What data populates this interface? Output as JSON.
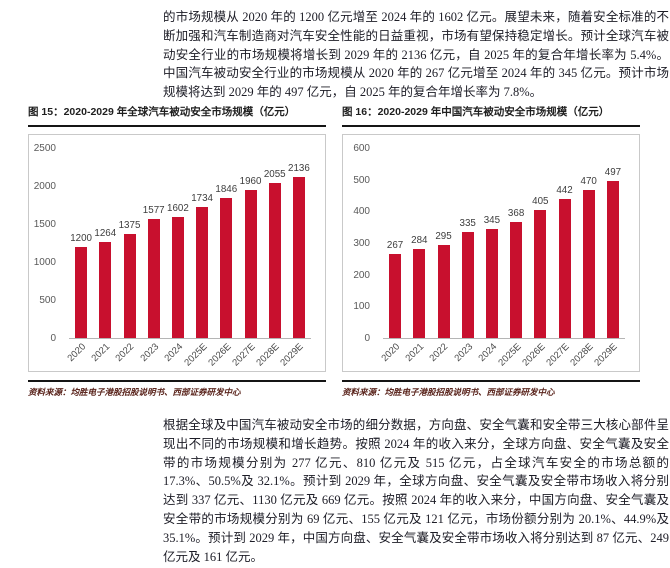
{
  "page": {
    "top_paragraph": "的市场规模从 2020 年的 1200 亿元增至 2024 年的 1602 亿元。展望未来，随着安全标准的不断加强和汽车制造商对汽车安全性能的日益重视，市场有望保持稳定增长。预计全球汽车被动安全行业的市场规模将增长到 2029 年的 2136 亿元，自 2025 年的复合年增长率为 5.4%。中国汽车被动安全行业的市场规模从 2020 年的 267 亿元增至 2024 年的 345 亿元。预计市场规模将达到 2029 年的 497 亿元，自 2025 年的复合年增长率为 7.8%。",
    "bottom_paragraph": "根据全球及中国汽车被动安全市场的细分数据，方向盘、安全气囊和安全带三大核心部件呈现出不同的市场规模和增长趋势。按照 2024 年的收入来分，全球方向盘、安全气囊及安全带的市场规模分别为 277 亿元、810 亿元及 515 亿元，占全球汽车安全的市场总额的 17.3%、50.5%及 32.1%。预计到 2029 年，全球方向盘、安全气囊及安全带市场收入将分别达到 337 亿元、1130 亿元及 669 亿元。按照 2024 年的收入来分，中国方向盘、安全气囊及安全带的市场规模分别为 69 亿元、155 亿元及 121 亿元，市场份额分别为 20.1%、44.9%及 35.1%。预计到 2029 年，中国方向盘、安全气囊及安全带市场收入将分别达到 87 亿元、249 亿元及 161 亿元。"
  },
  "colors": {
    "bar": "#C8102E",
    "rule": "#151515",
    "box_border": "#C9C9C9",
    "axis_label": "#595959",
    "value_label": "#3D3D3D",
    "source_text": "#5A241C"
  },
  "chart_data": [
    {
      "type": "bar",
      "title": "图 15：2020-2029 年全球汽车被动安全市场规模（亿元）",
      "source": "资料来源：均胜电子港股招股说明书、西部证券研发中心",
      "categories": [
        "2020",
        "2021",
        "2022",
        "2023",
        "2024",
        "2025E",
        "2026E",
        "2027E",
        "2028E",
        "2029E"
      ],
      "values": [
        1200,
        1264,
        1375,
        1577,
        1602,
        1734,
        1846,
        1960,
        2055,
        2136
      ],
      "ylim": [
        0,
        2500
      ],
      "yticks": [
        0,
        500,
        1000,
        1500,
        2000,
        2500
      ],
      "grid": false,
      "legend": "none",
      "bar_color": "#C8102E"
    },
    {
      "type": "bar",
      "title": "图 16：2020-2029 年中国汽车被动安全市场规模（亿元）",
      "source": "资料来源：均胜电子港股招股说明书、西部证券研发中心",
      "categories": [
        "2020",
        "2021",
        "2022",
        "2023",
        "2024",
        "2025E",
        "2026E",
        "2027E",
        "2028E",
        "2029E"
      ],
      "values": [
        267,
        284,
        295,
        335,
        345,
        368,
        405,
        442,
        470,
        497
      ],
      "ylim": [
        0,
        600
      ],
      "yticks": [
        0,
        100,
        200,
        300,
        400,
        500,
        600
      ],
      "grid": false,
      "legend": "none",
      "bar_color": "#C8102E"
    }
  ]
}
